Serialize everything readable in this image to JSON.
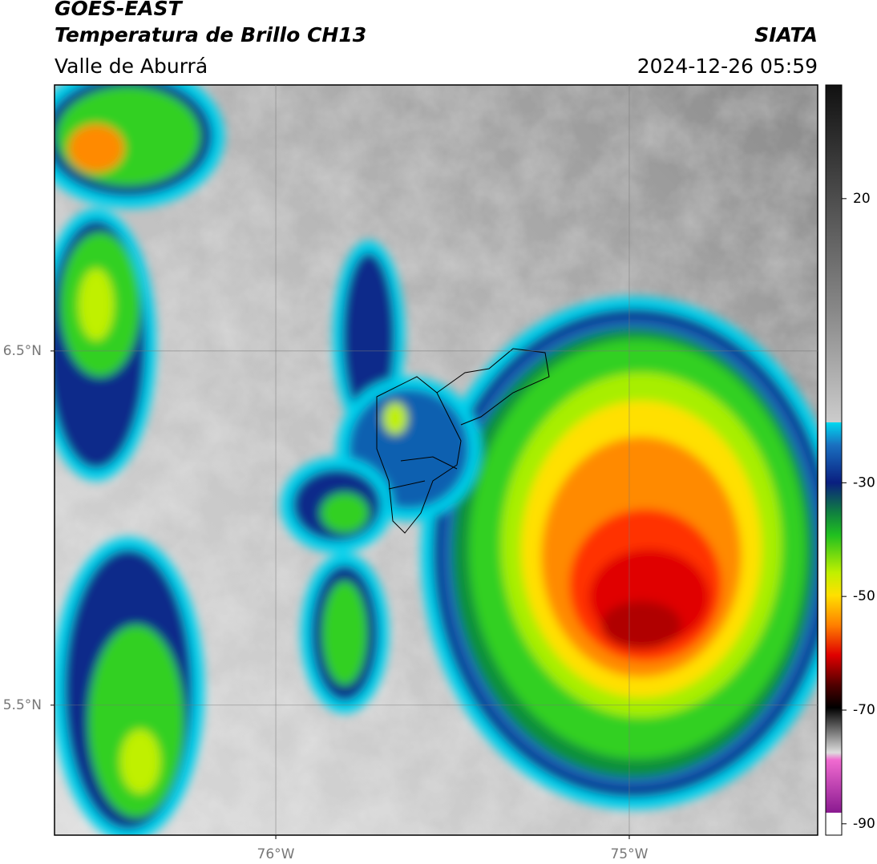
{
  "header": {
    "title": "GOES-EAST",
    "subtitle": "Temperatura de Brillo CH13",
    "region": "Valle de Aburrá",
    "source": "SIATA",
    "timestamp": "2024-12-26 05:59"
  },
  "map": {
    "lonlim": [
      -76.626,
      -74.467
    ],
    "latlim": [
      5.133,
      7.251
    ],
    "xticks": [
      {
        "value": -76,
        "label": "76°W"
      },
      {
        "value": -75,
        "label": "75°W"
      }
    ],
    "yticks": [
      {
        "value": 6.5,
        "label": "6.5°N"
      },
      {
        "value": 5.5,
        "label": "5.5°N"
      }
    ],
    "grid": true
  },
  "colorbar": {
    "lim": [
      -92,
      40
    ],
    "ticks": [
      20,
      -30,
      -50,
      -70,
      -90
    ]
  }
}
